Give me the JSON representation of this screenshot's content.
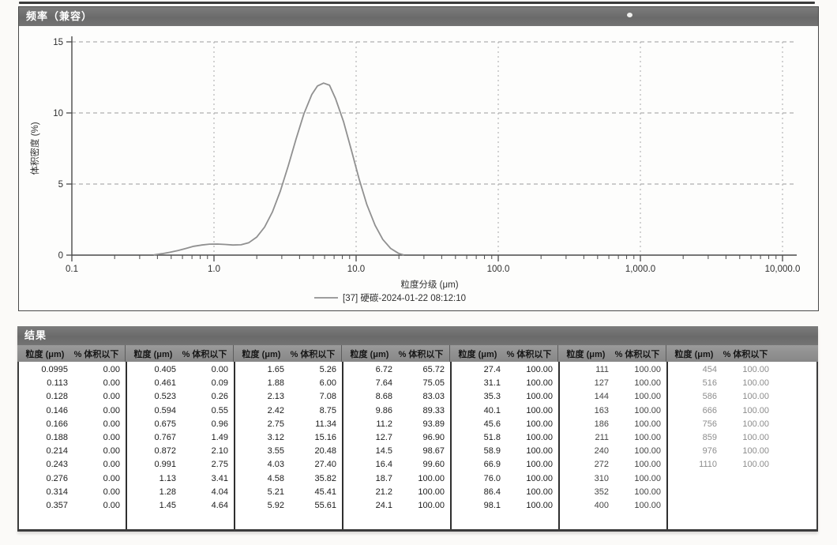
{
  "chart_panel": {
    "title": "频率（兼容）",
    "ylabel": "体积密度 (%)",
    "xlabel": "粒度分级 (μm)",
    "legend": "[37] 硬碳-2024-01-22 08:12:10",
    "y_ticks": [
      "0",
      "5",
      "10",
      "15"
    ],
    "x_ticks": [
      "0.1",
      "1.0",
      "10.0",
      "100.0",
      "1,000.0",
      "10,000.0"
    ]
  },
  "chart_data": {
    "type": "line",
    "title": "频率（兼容）",
    "xlabel": "粒度分级 (μm)",
    "ylabel": "体积密度 (%)",
    "x_scale": "log",
    "xlim": [
      0.1,
      10000
    ],
    "ylim": [
      0,
      15
    ],
    "x_tick_values": [
      0.1,
      1,
      10,
      100,
      1000,
      10000
    ],
    "y_tick_values": [
      0,
      5,
      10,
      15
    ],
    "grid": true,
    "legend_position": "bottom",
    "series": [
      {
        "name": "[37] 硬碳-2024-01-22 08:12:10",
        "color": "#909090",
        "points": [
          [
            0.38,
            0.02
          ],
          [
            0.43,
            0.1
          ],
          [
            0.49,
            0.2
          ],
          [
            0.56,
            0.33
          ],
          [
            0.64,
            0.48
          ],
          [
            0.72,
            0.62
          ],
          [
            0.82,
            0.71
          ],
          [
            0.93,
            0.77
          ],
          [
            1.06,
            0.78
          ],
          [
            1.2,
            0.75
          ],
          [
            1.36,
            0.71
          ],
          [
            1.55,
            0.73
          ],
          [
            1.76,
            0.88
          ],
          [
            2.0,
            1.27
          ],
          [
            2.27,
            1.97
          ],
          [
            2.58,
            3.05
          ],
          [
            2.93,
            4.5
          ],
          [
            3.33,
            6.27
          ],
          [
            3.78,
            8.16
          ],
          [
            4.29,
            9.93
          ],
          [
            4.88,
            11.3
          ],
          [
            5.35,
            11.9
          ],
          [
            5.9,
            12.1
          ],
          [
            6.5,
            11.95
          ],
          [
            7.17,
            11.0
          ],
          [
            8.15,
            9.4
          ],
          [
            9.25,
            7.4
          ],
          [
            10.5,
            5.35
          ],
          [
            11.9,
            3.55
          ],
          [
            13.6,
            2.1
          ],
          [
            15.4,
            1.1
          ],
          [
            17.5,
            0.47
          ],
          [
            19.9,
            0.12
          ],
          [
            21.5,
            0.02
          ]
        ]
      }
    ]
  },
  "results": {
    "title": "结果",
    "col_headers": {
      "size": "粒度 (μm)",
      "pct": "% 体积以下"
    },
    "groups": [
      [
        [
          "0.0995",
          "0.00"
        ],
        [
          "0.113",
          "0.00"
        ],
        [
          "0.128",
          "0.00"
        ],
        [
          "0.146",
          "0.00"
        ],
        [
          "0.166",
          "0.00"
        ],
        [
          "0.188",
          "0.00"
        ],
        [
          "0.214",
          "0.00"
        ],
        [
          "0.243",
          "0.00"
        ],
        [
          "0.276",
          "0.00"
        ],
        [
          "0.314",
          "0.00"
        ],
        [
          "0.357",
          "0.00"
        ]
      ],
      [
        [
          "0.405",
          "0.00"
        ],
        [
          "0.461",
          "0.09"
        ],
        [
          "0.523",
          "0.26"
        ],
        [
          "0.594",
          "0.55"
        ],
        [
          "0.675",
          "0.96"
        ],
        [
          "0.767",
          "1.49"
        ],
        [
          "0.872",
          "2.10"
        ],
        [
          "0.991",
          "2.75"
        ],
        [
          "1.13",
          "3.41"
        ],
        [
          "1.28",
          "4.04"
        ],
        [
          "1.45",
          "4.64"
        ]
      ],
      [
        [
          "1.65",
          "5.26"
        ],
        [
          "1.88",
          "6.00"
        ],
        [
          "2.13",
          "7.08"
        ],
        [
          "2.42",
          "8.75"
        ],
        [
          "2.75",
          "11.34"
        ],
        [
          "3.12",
          "15.16"
        ],
        [
          "3.55",
          "20.48"
        ],
        [
          "4.03",
          "27.40"
        ],
        [
          "4.58",
          "35.82"
        ],
        [
          "5.21",
          "45.41"
        ],
        [
          "5.92",
          "55.61"
        ]
      ],
      [
        [
          "6.72",
          "65.72"
        ],
        [
          "7.64",
          "75.05"
        ],
        [
          "8.68",
          "83.03"
        ],
        [
          "9.86",
          "89.33"
        ],
        [
          "11.2",
          "93.89"
        ],
        [
          "12.7",
          "96.90"
        ],
        [
          "14.5",
          "98.67"
        ],
        [
          "16.4",
          "99.60"
        ],
        [
          "18.7",
          "100.00"
        ],
        [
          "21.2",
          "100.00"
        ],
        [
          "24.1",
          "100.00"
        ]
      ],
      [
        [
          "27.4",
          "100.00"
        ],
        [
          "31.1",
          "100.00"
        ],
        [
          "35.3",
          "100.00"
        ],
        [
          "40.1",
          "100.00"
        ],
        [
          "45.6",
          "100.00"
        ],
        [
          "51.8",
          "100.00"
        ],
        [
          "58.9",
          "100.00"
        ],
        [
          "66.9",
          "100.00"
        ],
        [
          "76.0",
          "100.00"
        ],
        [
          "86.4",
          "100.00"
        ],
        [
          "98.1",
          "100.00"
        ]
      ],
      [
        [
          "111",
          "100.00"
        ],
        [
          "127",
          "100.00"
        ],
        [
          "144",
          "100.00"
        ],
        [
          "163",
          "100.00"
        ],
        [
          "186",
          "100.00"
        ],
        [
          "211",
          "100.00"
        ],
        [
          "240",
          "100.00"
        ],
        [
          "272",
          "100.00"
        ],
        [
          "310",
          "100.00"
        ],
        [
          "352",
          "100.00"
        ],
        [
          "400",
          "100.00"
        ]
      ],
      [
        [
          "454",
          "100.00"
        ],
        [
          "516",
          "100.00"
        ],
        [
          "586",
          "100.00"
        ],
        [
          "666",
          "100.00"
        ],
        [
          "756",
          "100.00"
        ],
        [
          "859",
          "100.00"
        ],
        [
          "976",
          "100.00"
        ],
        [
          "1110",
          "100.00"
        ]
      ]
    ]
  }
}
